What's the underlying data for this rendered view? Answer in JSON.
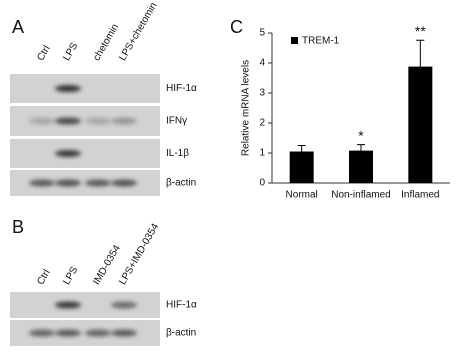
{
  "panel_a": {
    "label": "A",
    "lanes": [
      "Ctrl",
      "LPS",
      "chetomin",
      "LPS+chetomin"
    ],
    "rows": [
      "HIF-1α",
      "IFNγ",
      "IL-1β",
      "β-actin"
    ]
  },
  "panel_b": {
    "label": "B",
    "lanes": [
      "Ctrl",
      "LPS",
      "IMD-0354",
      "LPS+IMD-0354"
    ],
    "rows": [
      "HIF-1α",
      "β-actin"
    ]
  },
  "panel_c": {
    "label": "C"
  },
  "chart_data": {
    "type": "bar",
    "ylabel": "Relative mRNA levels",
    "categories": [
      "Normal",
      "Non-inflamed",
      "Inflamed"
    ],
    "series": [
      {
        "name": "TREM-1",
        "color": "#000000",
        "values": [
          1.05,
          1.08,
          3.88
        ],
        "errors": [
          0.2,
          0.2,
          0.88
        ]
      }
    ],
    "ylim": [
      0,
      5
    ],
    "yticks": [
      0,
      1,
      2,
      3,
      4,
      5
    ],
    "annotations": [
      {
        "text": "*",
        "category": "Non-inflamed"
      },
      {
        "text": "**",
        "category": "Inflamed"
      }
    ],
    "legend": "upper-left"
  }
}
